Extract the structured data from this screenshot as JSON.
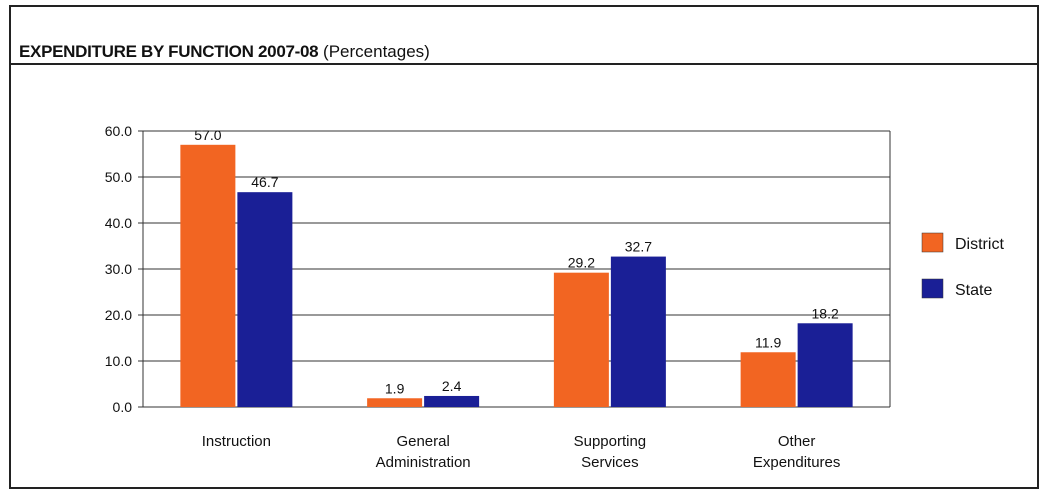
{
  "chart_data": {
    "type": "bar",
    "title": "EXPENDITURE BY FUNCTION 2007-08",
    "subtitle": "(Percentages)",
    "categories": [
      [
        "Instruction"
      ],
      [
        "General",
        "Administration"
      ],
      [
        "Supporting",
        "Services"
      ],
      [
        "Other",
        "Expenditures"
      ]
    ],
    "series": [
      {
        "name": "District",
        "color": "#f26522",
        "values": [
          57.0,
          1.9,
          29.2,
          11.9
        ],
        "labels": [
          "57.0",
          "1.9",
          "29.2",
          "11.9"
        ]
      },
      {
        "name": "State",
        "color": "#1a1f96",
        "values": [
          46.7,
          2.4,
          32.7,
          18.2
        ],
        "labels": [
          "46.7",
          "2.4",
          "32.7",
          "18.2"
        ]
      }
    ],
    "y_ticks": [
      "0.0",
      "10.0",
      "20.0",
      "30.0",
      "40.0",
      "50.0",
      "60.0"
    ],
    "ylim": [
      0,
      60
    ],
    "grid": true,
    "legend_position": "right"
  }
}
